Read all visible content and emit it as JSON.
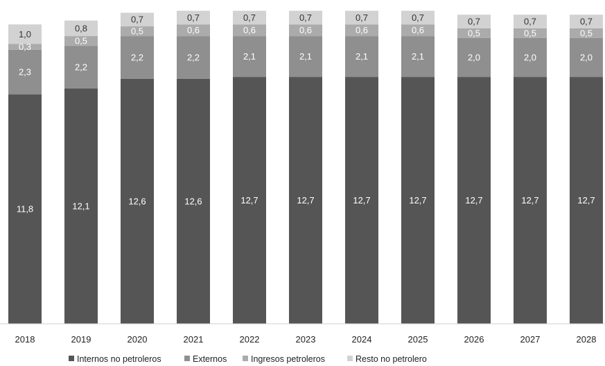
{
  "chart_data": {
    "type": "bar",
    "stacked": true,
    "title": "",
    "xlabel": "",
    "ylabel": "",
    "ylim": [
      0,
      16
    ],
    "grid": false,
    "legend_position": "bottom",
    "categories": [
      "2018",
      "2019",
      "2020",
      "2021",
      "2022",
      "2023",
      "2024",
      "2025",
      "2026",
      "2027",
      "2028"
    ],
    "series": [
      {
        "name": "Internos no petroleros",
        "color": "#555555",
        "text_color": "#ffffff",
        "values": [
          11.8,
          12.1,
          12.6,
          12.6,
          12.7,
          12.7,
          12.7,
          12.7,
          12.7,
          12.7,
          12.7
        ],
        "labels": [
          "11,8",
          "12,1",
          "12,6",
          "12,6",
          "12,7",
          "12,7",
          "12,7",
          "12,7",
          "12,7",
          "12,7",
          "12,7"
        ]
      },
      {
        "name": "Externos",
        "color": "#8f8f8f",
        "text_color": "#ffffff",
        "values": [
          2.3,
          2.2,
          2.2,
          2.2,
          2.1,
          2.1,
          2.1,
          2.1,
          2.0,
          2.0,
          2.0
        ],
        "labels": [
          "2,3",
          "2,2",
          "2,2",
          "2,2",
          "2,1",
          "2,1",
          "2,1",
          "2,1",
          "2,0",
          "2,0",
          "2,0"
        ]
      },
      {
        "name": "Ingresos petroleros",
        "color": "#ababab",
        "text_color": "#ffffff",
        "values": [
          0.3,
          0.5,
          0.5,
          0.6,
          0.6,
          0.6,
          0.6,
          0.6,
          0.5,
          0.5,
          0.5
        ],
        "labels": [
          "0,3",
          "0,5",
          "0,5",
          "0,6",
          "0,6",
          "0,6",
          "0,6",
          "0,6",
          "0,5",
          "0,5",
          "0,5"
        ]
      },
      {
        "name": "Resto no petrolero",
        "color": "#d2d2d2",
        "text_color": "#333333",
        "values": [
          1.0,
          0.8,
          0.7,
          0.7,
          0.7,
          0.7,
          0.7,
          0.7,
          0.7,
          0.7,
          0.7
        ],
        "labels": [
          "1,0",
          "0,8",
          "0,7",
          "0,7",
          "0,7",
          "0,7",
          "0,7",
          "0,7",
          "0,7",
          "0,7",
          "0,7"
        ]
      }
    ]
  }
}
